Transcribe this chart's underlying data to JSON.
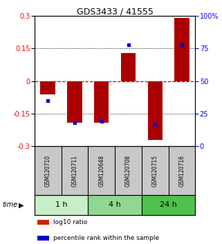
{
  "title": "GDS3433 / 41555",
  "samples": [
    "GSM120710",
    "GSM120711",
    "GSM120648",
    "GSM120708",
    "GSM120715",
    "GSM120716"
  ],
  "log10_ratio": [
    -0.06,
    -0.19,
    -0.19,
    0.13,
    -0.27,
    0.29
  ],
  "percentile_rank": [
    0.35,
    0.18,
    0.19,
    0.78,
    0.17,
    0.78
  ],
  "groups": [
    {
      "label": "1 h",
      "indices": [
        0,
        1
      ],
      "color": "#c8f0c8"
    },
    {
      "label": "4 h",
      "indices": [
        2,
        3
      ],
      "color": "#90d890"
    },
    {
      "label": "24 h",
      "indices": [
        4,
        5
      ],
      "color": "#50c050"
    }
  ],
  "ylim_left": [
    -0.3,
    0.3
  ],
  "yticks_left": [
    -0.3,
    -0.15,
    0,
    0.15,
    0.3
  ],
  "ytick_labels_left": [
    "-0.3",
    "-0.15",
    "0",
    "0.15",
    "0.3"
  ],
  "ytick_labels_right": [
    "0",
    "25",
    "50",
    "75",
    "100%"
  ],
  "bar_color": "#aa0000",
  "dot_color": "#0000cc",
  "hline_color": "#cc0000",
  "header_bg": "#c8c8c8",
  "legend_items": [
    {
      "color": "#cc2200",
      "label": "log10 ratio"
    },
    {
      "color": "#0000cc",
      "label": "percentile rank within the sample"
    }
  ]
}
